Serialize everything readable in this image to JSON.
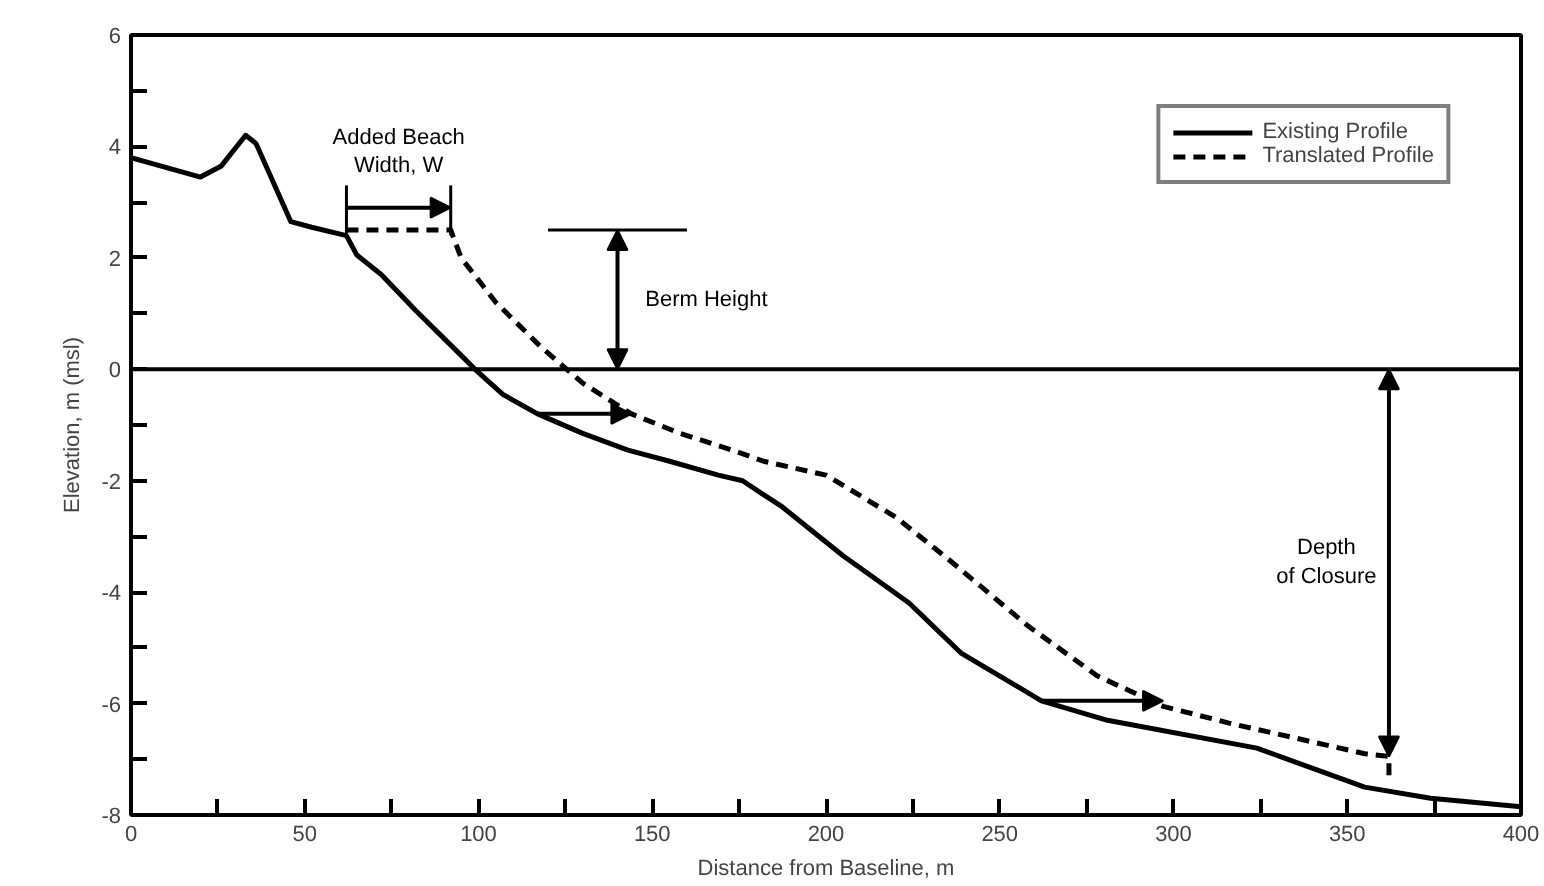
{
  "chart_data": {
    "type": "line",
    "xlabel": "Distance from Baseline, m",
    "ylabel": "Elevation, m (msl)",
    "xlim": [
      0,
      400
    ],
    "ylim": [
      -8,
      6
    ],
    "xticks": [
      0,
      {
        "value": 25,
        "label": null
      },
      50,
      {
        "value": 75,
        "label": null
      },
      100,
      {
        "value": 125,
        "label": null
      },
      150,
      {
        "value": 175,
        "label": null
      },
      200,
      {
        "value": 225,
        "label": null
      },
      250,
      {
        "value": 275,
        "label": null
      },
      300,
      {
        "value": 325,
        "label": null
      },
      350,
      {
        "value": 375,
        "label": null
      },
      400
    ],
    "yticks": [
      -8,
      {
        "value": -7,
        "label": null
      },
      -6,
      {
        "value": -5,
        "label": null
      },
      -4,
      {
        "value": -3,
        "label": null
      },
      -2,
      {
        "value": -1,
        "label": null
      },
      0,
      {
        "value": 1,
        "label": null
      },
      2,
      {
        "value": 3,
        "label": null
      },
      4,
      {
        "value": 5,
        "label": null
      },
      6
    ],
    "grid": false,
    "legend": "top right",
    "series": [
      {
        "name": "Existing Profile",
        "color": "#000000",
        "line_style": "solid",
        "x": [
          0,
          20,
          26,
          33,
          36,
          46,
          52,
          62,
          65,
          72,
          82,
          95,
          99,
          107,
          117,
          130,
          143,
          155,
          169,
          176,
          182,
          187,
          205,
          214,
          224,
          239,
          262,
          281,
          324,
          355,
          374,
          400
        ],
        "values": [
          3.8,
          3.45,
          3.65,
          4.2,
          4.05,
          2.65,
          2.55,
          2.4,
          2.05,
          1.7,
          1.05,
          0.25,
          0,
          -0.45,
          -0.8,
          -1.15,
          -1.45,
          -1.65,
          -1.9,
          -2,
          -2.25,
          -2.45,
          -3.35,
          -3.75,
          -4.2,
          -5.1,
          -5.95,
          -6.3,
          -6.8,
          -7.5,
          -7.7,
          -7.85
        ]
      },
      {
        "name": "Translated Profile",
        "color": "#000000",
        "line_style": "dashed",
        "x": [
          62,
          92,
          95,
          105,
          118,
          130,
          144,
          158,
          173,
          182,
          200,
          220,
          236,
          258,
          278,
          297,
          316,
          355,
          362,
          362
        ],
        "values": [
          2.5,
          2.5,
          2.0,
          1.2,
          0.4,
          -0.25,
          -0.8,
          -1.15,
          -1.45,
          -1.65,
          -1.9,
          -2.65,
          -3.45,
          -4.6,
          -5.5,
          -6.05,
          -6.35,
          -6.9,
          -6.95,
          -7.35
        ]
      },
      {
        "type": "line",
        "color": "#000000",
        "line_style": "solid",
        "x": [
          120,
          160
        ],
        "values": [
          2.5,
          2.5
        ]
      }
    ],
    "ref_lines": [
      {
        "axis": "y",
        "value": 0,
        "label": null,
        "color": "#000000",
        "line_style": "solid"
      }
    ],
    "annotations": [
      {
        "text": "Added Beach\nWidth, W",
        "x": 62,
        "y": 2.5
      },
      "Berm Height",
      "Depth\nof Closure"
    ]
  }
}
